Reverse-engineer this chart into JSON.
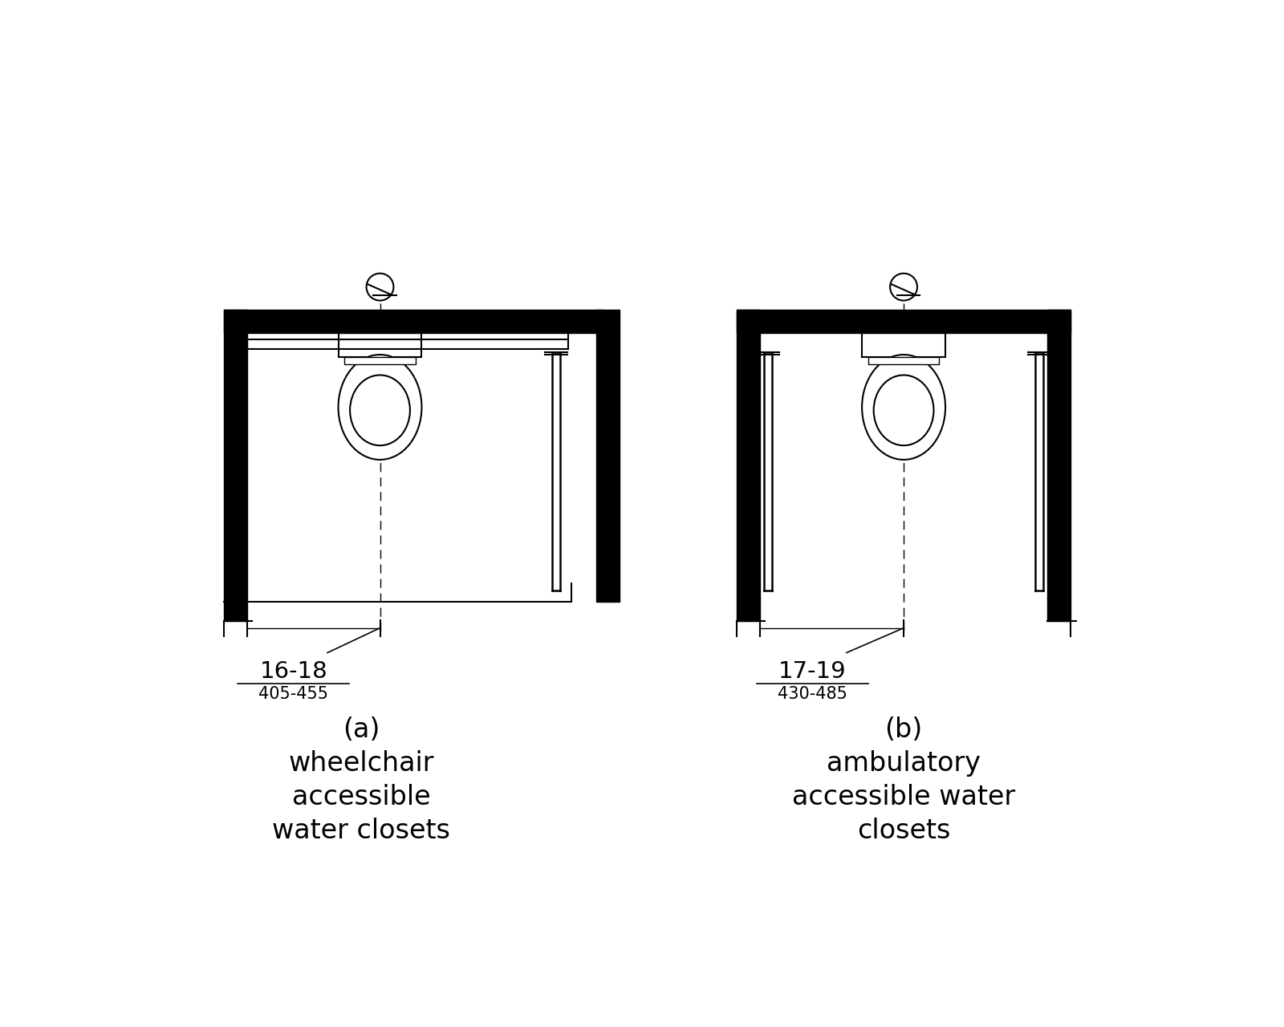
{
  "fig_width": 16.0,
  "fig_height": 12.8,
  "background_color": "#ffffff",
  "title_a": "(a)\nwheelchair\naccessible\nwater closets",
  "title_b": "(b)\nambulatory\naccessible water\nclosets",
  "dim_a_top": "16-18",
  "dim_a_bot": "405-455",
  "dim_b_top": "17-19",
  "dim_b_bot": "430-485"
}
